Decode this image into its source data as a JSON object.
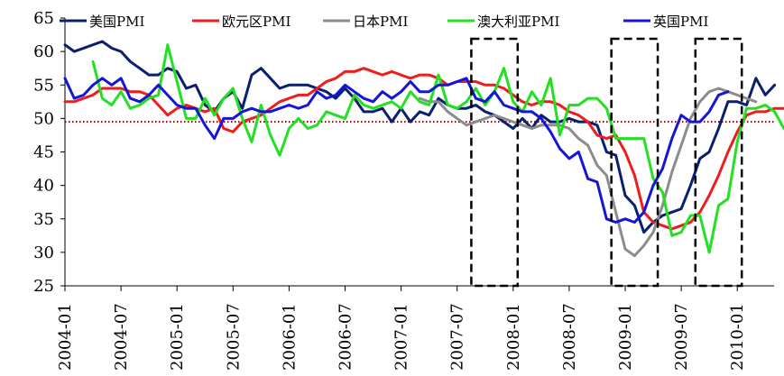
{
  "chart_data": {
    "type": "line",
    "title": "",
    "xlabel": "",
    "ylabel": "",
    "ylim": [
      25,
      65
    ],
    "yticks": [
      25,
      30,
      35,
      40,
      45,
      50,
      55,
      60,
      65
    ],
    "xtick_labels": [
      "2004-01",
      "2004-07",
      "2005-01",
      "2005-07",
      "2006-01",
      "2006-07",
      "2007-01",
      "2007-07",
      "2008-01",
      "2008-07",
      "2009-01",
      "2009-07",
      "2010-01"
    ],
    "grid": false,
    "legend": "top",
    "reference_line": {
      "y": 49.5,
      "color": "#8b0000",
      "style": "dotted"
    },
    "highlight_periods": [
      {
        "from": "2007-09",
        "to": "2008-01"
      },
      {
        "from": "2008-12",
        "to": "2009-04"
      },
      {
        "from": "2009-09",
        "to": "2010-01"
      }
    ],
    "series": [
      {
        "name": "美国PMI",
        "color": "#0a1f6e",
        "start": "2004-01",
        "values": [
          61,
          60,
          60.5,
          61,
          61.5,
          60.5,
          60,
          58.5,
          57.5,
          56.5,
          56.5,
          57.5,
          57,
          54.5,
          55,
          52,
          51,
          53,
          54,
          51.5,
          56.5,
          57.5,
          56,
          54.5,
          55,
          55,
          55,
          54.5,
          54,
          53,
          54.5,
          53,
          51,
          51,
          51.5,
          49.5,
          51.5,
          49.5,
          51,
          50.5,
          53,
          52,
          51.5,
          51.5,
          52,
          51,
          50.5,
          49.5,
          48.5,
          50,
          48.5,
          50.5,
          49.5,
          49.5,
          50,
          49.5,
          49.5,
          49,
          45,
          44.5,
          38.5,
          37,
          33,
          34.5,
          35.5,
          36,
          36.5,
          40,
          44,
          45,
          48.5,
          52.5,
          52.5,
          52,
          56,
          53.5,
          55
        ]
      },
      {
        "name": "欧元区PMI",
        "color": "#ee1c1c",
        "start": "2004-01",
        "values": [
          52.5,
          52.5,
          53,
          53.5,
          54.5,
          54.5,
          54.5,
          54,
          54,
          53.5,
          52,
          50.5,
          51.5,
          52,
          51.5,
          51,
          51.5,
          48.5,
          48,
          49.5,
          50,
          50.5,
          51.5,
          52.5,
          53,
          53.5,
          53.5,
          54.5,
          55.5,
          56,
          57,
          57,
          57.5,
          57,
          56.5,
          57,
          56.5,
          56,
          56.5,
          56.5,
          56,
          55,
          55.5,
          55.5,
          55.5,
          55,
          55,
          54.5,
          53.5,
          52.5,
          52,
          52.5,
          52.5,
          52,
          51,
          50.5,
          49.5,
          47.5,
          47,
          47.5,
          45,
          41.5,
          36,
          34.5,
          34,
          33.5,
          34,
          34.5,
          36,
          38.5,
          41.5,
          45,
          48,
          50.5,
          51,
          51,
          51.5,
          51.5
        ]
      },
      {
        "name": "日本PMI",
        "color": "#8c8c8c",
        "start": "2007-03",
        "values": [
          53,
          52.5,
          52.5,
          51,
          50,
          49,
          49.5,
          50,
          50.5,
          50,
          49.5,
          49,
          48.5,
          49,
          49,
          49,
          48.5,
          47,
          46,
          43,
          41.5,
          36,
          30.5,
          29.5,
          31,
          33,
          37,
          42,
          46,
          50,
          52.5,
          54,
          54.5,
          54,
          53.5,
          53,
          52.5
        ]
      },
      {
        "name": "澳大利亚PMI",
        "color": "#22e022",
        "start": "2004-04",
        "values": [
          58.5,
          53,
          52,
          54,
          51.5,
          52,
          53,
          53.5,
          61,
          55.5,
          50,
          50,
          53,
          50.5,
          53,
          54.5,
          50,
          46.5,
          52,
          47.5,
          44.5,
          48.5,
          50,
          48.5,
          49,
          51,
          50.5,
          50,
          53.5,
          52,
          51.5,
          52,
          52.5,
          51.5,
          54,
          52.5,
          52,
          56.5,
          52,
          51.5,
          52.5,
          54.5,
          52,
          54,
          57.5,
          52.5,
          51,
          54,
          52,
          56,
          47.5,
          52,
          52,
          53,
          53,
          51.5,
          47,
          47,
          47,
          47,
          41,
          39,
          32.5,
          33,
          35.5,
          35.5,
          30,
          37,
          38,
          46.5,
          51.5,
          51.5,
          52,
          51,
          48.5,
          51
        ]
      },
      {
        "name": "英国PMI",
        "color": "#1515d9",
        "start": "2004-01",
        "values": [
          56,
          53,
          53.5,
          55,
          56,
          55,
          56,
          53,
          52.5,
          53.5,
          55,
          53.5,
          52,
          51.5,
          51.5,
          49,
          47,
          50,
          50,
          51,
          51.5,
          51,
          51,
          51.5,
          52,
          51.5,
          52,
          54,
          53,
          53.5,
          55,
          54,
          53,
          52.5,
          54,
          53,
          54,
          55.5,
          54,
          54,
          55,
          55,
          55.5,
          56,
          53,
          52.5,
          54,
          52,
          51.5,
          51,
          51,
          50,
          48,
          45.5,
          44,
          45,
          41,
          40.5,
          35,
          34.5,
          35,
          34.5,
          36,
          40,
          42.5,
          47,
          50.5,
          49.5,
          49.5,
          51,
          53.5,
          54
        ]
      }
    ]
  }
}
